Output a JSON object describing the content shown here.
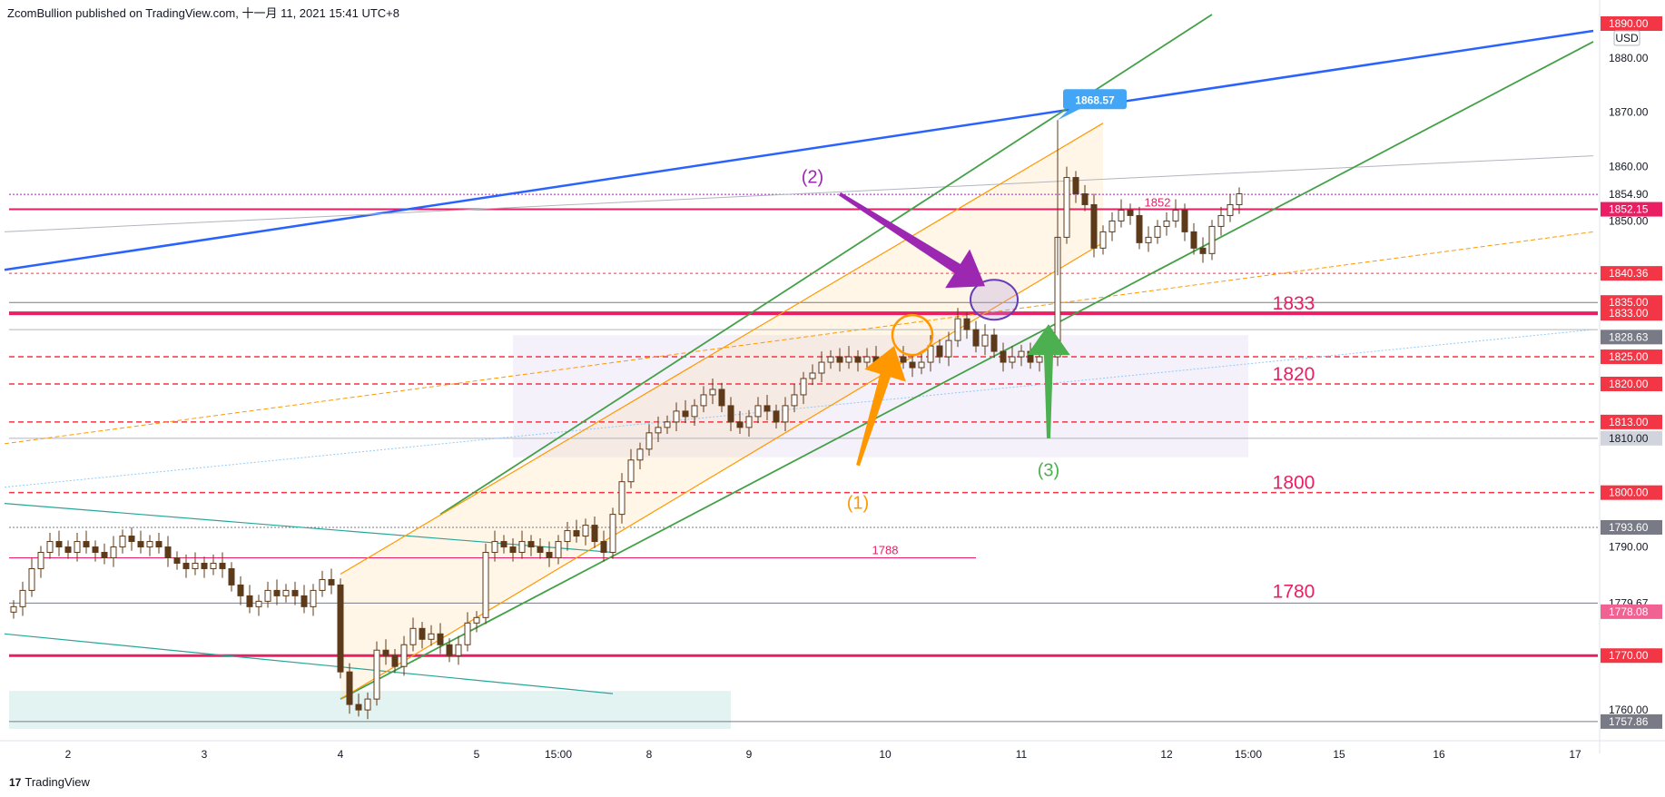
{
  "header": {
    "text": "ZcomBullion published on TradingView.com, 十一月 11, 2021 15:41 UTC+8"
  },
  "footer": {
    "logo": "17",
    "text": "TradingView"
  },
  "chart_data": {
    "type": "candlestick",
    "currency": "USD",
    "ylim": [
      1755,
      1888
    ],
    "y_ticks": [
      1760,
      1770,
      1780,
      1790,
      1800,
      1810,
      1820,
      1830,
      1840,
      1850,
      1860,
      1870,
      1880
    ],
    "x_ticks": [
      {
        "label": "2",
        "idx": 6
      },
      {
        "label": "3",
        "idx": 21
      },
      {
        "label": "4",
        "idx": 36
      },
      {
        "label": "5",
        "idx": 51
      },
      {
        "label": "15:00",
        "idx": 60
      },
      {
        "label": "8",
        "idx": 70
      },
      {
        "label": "9",
        "idx": 81
      },
      {
        "label": "10",
        "idx": 96
      },
      {
        "label": "11",
        "idx": 111
      },
      {
        "label": "12",
        "idx": 127
      },
      {
        "label": "15:00",
        "idx": 136
      },
      {
        "label": "15",
        "idx": 146
      },
      {
        "label": "16",
        "idx": 157
      },
      {
        "label": "17",
        "idx": 172
      }
    ],
    "closes": [
      1779,
      1782,
      1786,
      1789,
      1791,
      1790,
      1789,
      1791,
      1790,
      1789,
      1788,
      1790,
      1792,
      1791,
      1790,
      1791,
      1790,
      1788,
      1787,
      1786,
      1787,
      1786,
      1787,
      1786,
      1783,
      1781,
      1779,
      1780,
      1782,
      1781,
      1782,
      1781,
      1779,
      1782,
      1784,
      1783,
      1767,
      1761,
      1760,
      1762,
      1771,
      1770,
      1768,
      1772,
      1775,
      1773,
      1774,
      1772,
      1770,
      1772,
      1776,
      1777,
      1789,
      1791,
      1790,
      1789,
      1791,
      1790,
      1789,
      1788,
      1791,
      1793,
      1792,
      1794,
      1791,
      1789,
      1796,
      1802,
      1806,
      1808,
      1811,
      1812,
      1813,
      1815,
      1814,
      1816,
      1818,
      1819,
      1816,
      1813,
      1812,
      1814,
      1816,
      1815,
      1813,
      1816,
      1818,
      1821,
      1822,
      1824,
      1825,
      1824,
      1825,
      1824,
      1825,
      1824,
      1823,
      1825,
      1824,
      1823,
      1824,
      1827,
      1825,
      1828,
      1832,
      1830,
      1827,
      1829,
      1826,
      1824,
      1825,
      1826,
      1824,
      1825,
      1825,
      1847,
      1858,
      1855,
      1853,
      1845,
      1848,
      1850,
      1852,
      1851,
      1846,
      1847,
      1849,
      1850,
      1852,
      1848,
      1845,
      1844,
      1849,
      1851,
      1853,
      1855
    ],
    "levels": [
      {
        "label": "1880.00",
        "value": 1880,
        "tag": "tick"
      },
      {
        "label": "1870.00",
        "value": 1870,
        "tag": "tick"
      },
      {
        "label": "1860.00",
        "value": 1860,
        "tag": "tick"
      },
      {
        "label": "1854.90",
        "value": 1854.9,
        "tag": "tick"
      },
      {
        "label": "1852.15",
        "value": 1852.15,
        "tag": "red",
        "color": "#e91e63"
      },
      {
        "label": "1850.00",
        "value": 1850,
        "tag": "tick"
      },
      {
        "label": "1840.36",
        "value": 1840.36,
        "tag": "red",
        "color": "#f23645"
      },
      {
        "label": "1835.00",
        "value": 1835,
        "tag": "red",
        "color": "#f23645"
      },
      {
        "label": "1833.00",
        "value": 1833,
        "tag": "red",
        "color": "#f23645"
      },
      {
        "label": "1828.63",
        "value": 1828.63,
        "tag": "gray",
        "color": "#787b86"
      },
      {
        "label": "1825.00",
        "value": 1825,
        "tag": "red",
        "color": "#f23645"
      },
      {
        "label": "1820.00",
        "value": 1820,
        "tag": "red",
        "color": "#f23645"
      },
      {
        "label": "1813.00",
        "value": 1813,
        "tag": "red",
        "color": "#f23645"
      },
      {
        "label": "1810.00",
        "value": 1810,
        "tag": "lightgray",
        "color": "#d1d4dc"
      },
      {
        "label": "1800.00",
        "value": 1800,
        "tag": "red",
        "color": "#f23645"
      },
      {
        "label": "1793.60",
        "value": 1793.6,
        "tag": "gray",
        "color": "#787b86"
      },
      {
        "label": "1790.00",
        "value": 1790,
        "tag": "tick"
      },
      {
        "label": "1779.67",
        "value": 1779.67,
        "tag": "tick"
      },
      {
        "label": "1778.08",
        "value": 1778.08,
        "tag": "pink",
        "color": "#f06292"
      },
      {
        "label": "1770.00",
        "value": 1770,
        "tag": "red",
        "color": "#f23645"
      },
      {
        "label": "1760.00",
        "value": 1760,
        "tag": "tick"
      },
      {
        "label": "1757.86",
        "value": 1757.86,
        "tag": "gray",
        "color": "#787b86"
      }
    ],
    "top_partial_label": "1890.00",
    "high_label": "1868.57",
    "zone_labels": [
      {
        "text": "1852",
        "value": 1852
      },
      {
        "text": "1833",
        "value": 1833
      },
      {
        "text": "1820",
        "value": 1820
      },
      {
        "text": "1800",
        "value": 1800
      },
      {
        "text": "1788",
        "value": 1788
      },
      {
        "text": "1780",
        "value": 1780
      }
    ],
    "annotations": [
      {
        "text": "(1)",
        "color": "#ff9800"
      },
      {
        "text": "(2)",
        "color": "#9c27b0"
      },
      {
        "text": "(3)",
        "color": "#4caf50"
      }
    ],
    "colors": {
      "up": "#ffffff",
      "down": "#5d3a1a",
      "wick": "#5d3a1a",
      "level_red": "#e91e63",
      "channel_green": "#43a047",
      "trend_blue": "#2962ff",
      "channel_orange": "#ff9800"
    }
  }
}
